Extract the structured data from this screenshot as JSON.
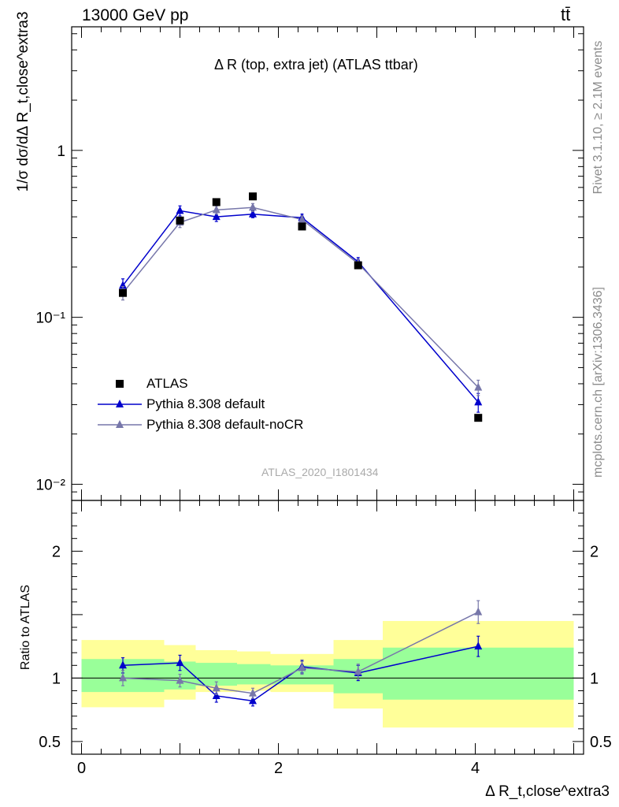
{
  "header": {
    "energy_label": "13000 GeV pp",
    "process_label": "tt̄"
  },
  "side": {
    "rivet_label": "Rivet 3.1.10, ≥ 2.1M events",
    "source_label": "mcplots.cern.ch [arXiv:1306.3436]"
  },
  "chart_data": [
    {
      "type": "line",
      "panel": "main",
      "title": "Δ R (top, extra jet) (ATLAS ttbar)",
      "ylabel": "1/σ dσ/dΔ R_t,close^extra3",
      "yscale": "log",
      "ylim": [
        0.008,
        5.5
      ],
      "xlim": [
        -0.1,
        5.1
      ],
      "y_ticks": [
        {
          "value": 0.01,
          "label": "10⁻²"
        },
        {
          "value": 0.1,
          "label": "10⁻¹"
        },
        {
          "value": 1,
          "label": "1"
        }
      ],
      "watermark": "ATLAS_2020_I1801434",
      "legend_position": "bottom-left",
      "x": [
        0.42,
        1.0,
        1.37,
        1.74,
        2.24,
        2.81,
        4.03
      ],
      "series": [
        {
          "name": "ATLAS",
          "marker": "square",
          "color": "#000000",
          "values": [
            0.14,
            0.38,
            0.49,
            0.53,
            0.35,
            0.205,
            0.025
          ]
        },
        {
          "name": "Pythia 8.308 default",
          "marker": "triangle",
          "color": "#0000cc",
          "values": [
            0.155,
            0.435,
            0.4,
            0.415,
            0.395,
            0.215,
            0.031
          ],
          "errors": [
            0.015,
            0.03,
            0.025,
            0.02,
            0.02,
            0.013,
            0.004
          ]
        },
        {
          "name": "Pythia 8.308 default-noCR",
          "marker": "triangle",
          "color": "#7777aa",
          "values": [
            0.14,
            0.37,
            0.44,
            0.455,
            0.385,
            0.21,
            0.038
          ],
          "errors": [
            0.013,
            0.025,
            0.025,
            0.025,
            0.02,
            0.013,
            0.004
          ]
        }
      ]
    },
    {
      "type": "line",
      "panel": "ratio",
      "ylabel": "Ratio to ATLAS",
      "xlabel": "Δ R_t,close^extra3",
      "ylim": [
        0.4,
        2.4
      ],
      "xlim": [
        -0.1,
        5.1
      ],
      "y_ticks": [
        {
          "value": 0.5,
          "label": "0.5"
        },
        {
          "value": 1,
          "label": "1"
        },
        {
          "value": 2,
          "label": "2"
        }
      ],
      "x_ticks": [
        {
          "value": 0,
          "label": "0"
        },
        {
          "value": 2,
          "label": "2"
        },
        {
          "value": 4,
          "label": "4"
        }
      ],
      "bands": {
        "edges": [
          0.0,
          0.84,
          1.16,
          1.58,
          1.92,
          2.56,
          3.06,
          5.0
        ],
        "yellow_low": [
          0.77,
          0.83,
          0.89,
          0.9,
          0.89,
          0.76,
          0.61
        ],
        "yellow_high": [
          1.3,
          1.26,
          1.22,
          1.21,
          1.19,
          1.3,
          1.45
        ],
        "green_low": [
          0.89,
          0.91,
          0.94,
          0.95,
          0.95,
          0.88,
          0.83
        ],
        "green_high": [
          1.15,
          1.13,
          1.12,
          1.11,
          1.1,
          1.15,
          1.24
        ]
      },
      "x": [
        0.42,
        1.0,
        1.37,
        1.74,
        2.24,
        2.81,
        4.03
      ],
      "series": [
        {
          "name": "Pythia 8.308 default",
          "color": "#0000cc",
          "values": [
            1.1,
            1.12,
            0.86,
            0.82,
            1.09,
            1.04,
            1.25
          ],
          "errors": [
            0.06,
            0.06,
            0.05,
            0.04,
            0.05,
            0.06,
            0.08
          ]
        },
        {
          "name": "Pythia 8.308 default-noCR",
          "color": "#7777aa",
          "values": [
            1.0,
            0.98,
            0.92,
            0.88,
            1.08,
            1.05,
            1.52
          ],
          "errors": [
            0.06,
            0.05,
            0.05,
            0.04,
            0.05,
            0.06,
            0.09
          ]
        }
      ]
    }
  ]
}
